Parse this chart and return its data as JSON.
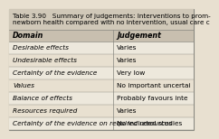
{
  "title": "Table 3.90   Summary of judgements: Interventions to prom-\nnewborn health compared with no intervention, usual care c",
  "headers": [
    "Domain",
    "Judgement"
  ],
  "rows": [
    [
      "Desirable effects",
      "Varies"
    ],
    [
      "Undesirable effects",
      "Varies"
    ],
    [
      "Certainty of the evidence",
      "Very low"
    ],
    [
      "Values",
      "No important uncertai"
    ],
    [
      "Balance of effects",
      "Probably favours inte"
    ],
    [
      "Resources required",
      "Varies"
    ],
    [
      "Certainty of the evidence on required resources",
      "No included studies"
    ]
  ],
  "bg_color": "#e8e0d0",
  "header_bg": "#c8bfaf",
  "title_bg": "#d0c8b8",
  "border_color": "#888880",
  "text_color": "#000000",
  "title_fontsize": 5.2,
  "header_fontsize": 5.8,
  "row_fontsize": 5.3,
  "col_split": 0.565
}
